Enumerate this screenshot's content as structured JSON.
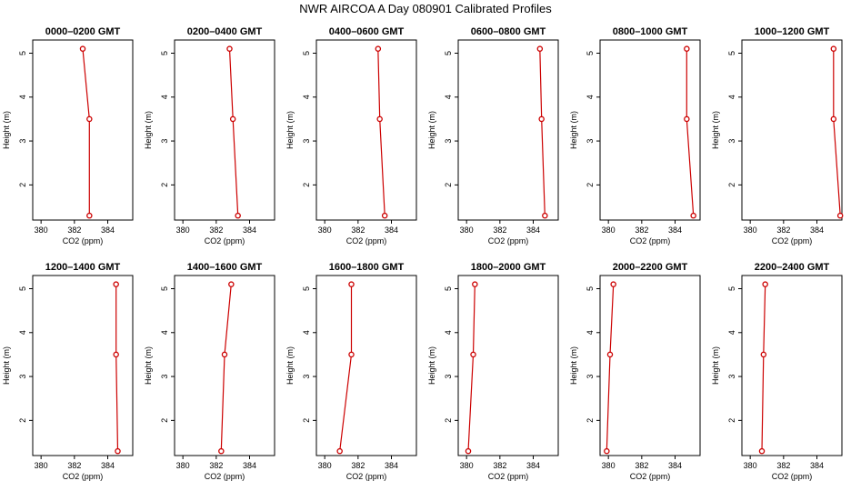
{
  "figure_title": "NWR AIRCOA A  Day 080901  Calibrated Profiles",
  "colors": {
    "line": "#cc0000",
    "marker": "#cc0000",
    "axis": "#000000"
  },
  "chart_data": [
    {
      "type": "line",
      "title": "0000–0200 GMT",
      "xlabel": "CO2 (ppm)",
      "ylabel": "Height (m)",
      "xlim": [
        379.5,
        385.5
      ],
      "ylim": [
        1.2,
        5.3
      ],
      "xticks": [
        380,
        382,
        384
      ],
      "yticks": [
        2,
        3,
        4,
        5
      ],
      "grid": false,
      "series": [
        {
          "x": [
            382.9,
            382.9,
            382.5
          ],
          "y": [
            1.3,
            3.5,
            5.1
          ]
        }
      ]
    },
    {
      "type": "line",
      "title": "0200–0400 GMT",
      "xlabel": "CO2 (ppm)",
      "ylabel": "Height (m)",
      "xlim": [
        379.5,
        385.5
      ],
      "ylim": [
        1.2,
        5.3
      ],
      "xticks": [
        380,
        382,
        384
      ],
      "yticks": [
        2,
        3,
        4,
        5
      ],
      "grid": false,
      "series": [
        {
          "x": [
            383.3,
            383.0,
            382.8
          ],
          "y": [
            1.3,
            3.5,
            5.1
          ]
        }
      ]
    },
    {
      "type": "line",
      "title": "0400–0600 GMT",
      "xlabel": "CO2 (ppm)",
      "ylabel": "Height (m)",
      "xlim": [
        379.5,
        385.5
      ],
      "ylim": [
        1.2,
        5.3
      ],
      "xticks": [
        380,
        382,
        384
      ],
      "yticks": [
        2,
        3,
        4,
        5
      ],
      "grid": false,
      "series": [
        {
          "x": [
            383.6,
            383.3,
            383.2
          ],
          "y": [
            1.3,
            3.5,
            5.1
          ]
        }
      ]
    },
    {
      "type": "line",
      "title": "0600–0800 GMT",
      "xlabel": "CO2 (ppm)",
      "ylabel": "Height (m)",
      "xlim": [
        379.5,
        385.5
      ],
      "ylim": [
        1.2,
        5.3
      ],
      "xticks": [
        380,
        382,
        384
      ],
      "yticks": [
        2,
        3,
        4,
        5
      ],
      "grid": false,
      "series": [
        {
          "x": [
            384.7,
            384.5,
            384.4
          ],
          "y": [
            1.3,
            3.5,
            5.1
          ]
        }
      ]
    },
    {
      "type": "line",
      "title": "0800–1000 GMT",
      "xlabel": "CO2 (ppm)",
      "ylabel": "Height (m)",
      "xlim": [
        379.5,
        385.5
      ],
      "ylim": [
        1.2,
        5.3
      ],
      "xticks": [
        380,
        382,
        384
      ],
      "yticks": [
        2,
        3,
        4,
        5
      ],
      "grid": false,
      "series": [
        {
          "x": [
            385.1,
            384.7,
            384.7
          ],
          "y": [
            1.3,
            3.5,
            5.1
          ]
        }
      ]
    },
    {
      "type": "line",
      "title": "1000–1200 GMT",
      "xlabel": "CO2 (ppm)",
      "ylabel": "Height (m)",
      "xlim": [
        379.5,
        385.5
      ],
      "ylim": [
        1.2,
        5.3
      ],
      "xticks": [
        380,
        382,
        384
      ],
      "yticks": [
        2,
        3,
        4,
        5
      ],
      "grid": false,
      "series": [
        {
          "x": [
            385.4,
            385.0,
            385.0
          ],
          "y": [
            1.3,
            3.5,
            5.1
          ]
        }
      ]
    },
    {
      "type": "line",
      "title": "1200–1400 GMT",
      "xlabel": "CO2 (ppm)",
      "ylabel": "Height (m)",
      "xlim": [
        379.5,
        385.5
      ],
      "ylim": [
        1.2,
        5.3
      ],
      "xticks": [
        380,
        382,
        384
      ],
      "yticks": [
        2,
        3,
        4,
        5
      ],
      "grid": false,
      "series": [
        {
          "x": [
            384.6,
            384.5,
            384.5
          ],
          "y": [
            1.3,
            3.5,
            5.1
          ]
        }
      ]
    },
    {
      "type": "line",
      "title": "1400–1600 GMT",
      "xlabel": "CO2 (ppm)",
      "ylabel": "Height (m)",
      "xlim": [
        379.5,
        385.5
      ],
      "ylim": [
        1.2,
        5.3
      ],
      "xticks": [
        380,
        382,
        384
      ],
      "yticks": [
        2,
        3,
        4,
        5
      ],
      "grid": false,
      "series": [
        {
          "x": [
            382.3,
            382.5,
            382.9
          ],
          "y": [
            1.3,
            3.5,
            5.1
          ]
        }
      ]
    },
    {
      "type": "line",
      "title": "1600–1800 GMT",
      "xlabel": "CO2 (ppm)",
      "ylabel": "Height (m)",
      "xlim": [
        379.5,
        385.5
      ],
      "ylim": [
        1.2,
        5.3
      ],
      "xticks": [
        380,
        382,
        384
      ],
      "yticks": [
        2,
        3,
        4,
        5
      ],
      "grid": false,
      "series": [
        {
          "x": [
            380.9,
            381.6,
            381.6
          ],
          "y": [
            1.3,
            3.5,
            5.1
          ]
        }
      ]
    },
    {
      "type": "line",
      "title": "1800–2000 GMT",
      "xlabel": "CO2 (ppm)",
      "ylabel": "Height (m)",
      "xlim": [
        379.5,
        385.5
      ],
      "ylim": [
        1.2,
        5.3
      ],
      "xticks": [
        380,
        382,
        384
      ],
      "yticks": [
        2,
        3,
        4,
        5
      ],
      "grid": false,
      "series": [
        {
          "x": [
            380.1,
            380.4,
            380.5
          ],
          "y": [
            1.3,
            3.5,
            5.1
          ]
        }
      ]
    },
    {
      "type": "line",
      "title": "2000–2200 GMT",
      "xlabel": "CO2 (ppm)",
      "ylabel": "Height (m)",
      "xlim": [
        379.5,
        385.5
      ],
      "ylim": [
        1.2,
        5.3
      ],
      "xticks": [
        380,
        382,
        384
      ],
      "yticks": [
        2,
        3,
        4,
        5
      ],
      "grid": false,
      "series": [
        {
          "x": [
            379.9,
            380.1,
            380.3
          ],
          "y": [
            1.3,
            3.5,
            5.1
          ]
        }
      ]
    },
    {
      "type": "line",
      "title": "2200–2400 GMT",
      "xlabel": "CO2 (ppm)",
      "ylabel": "Height (m)",
      "xlim": [
        379.5,
        385.5
      ],
      "ylim": [
        1.2,
        5.3
      ],
      "xticks": [
        380,
        382,
        384
      ],
      "yticks": [
        2,
        3,
        4,
        5
      ],
      "grid": false,
      "series": [
        {
          "x": [
            380.7,
            380.8,
            380.9
          ],
          "y": [
            1.3,
            3.5,
            5.1
          ]
        }
      ]
    }
  ]
}
